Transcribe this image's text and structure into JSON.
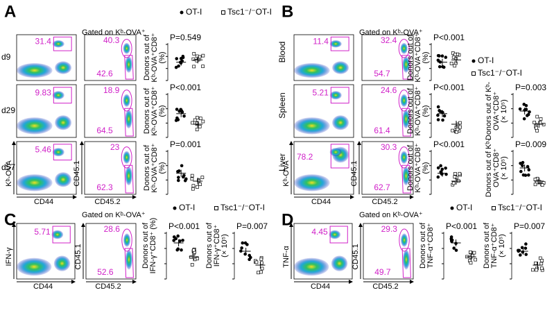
{
  "panels": [
    {
      "label": "A",
      "gate_title": "Gated on Kᵇ-OVA⁺",
      "flow1_x": "CD44",
      "flow1_y": "Kᵇ-OVA",
      "flow2_x": "CD45.2",
      "flow2_y": "CD45.1",
      "legend": [
        "OT-I",
        "Tsc1⁻/⁻OT-I"
      ],
      "dot1_ylabel": [
        "Donors out of",
        "Kᵇ-OVA⁺CD8⁺",
        "(%)"
      ],
      "rows": [
        {
          "name": "d9",
          "flow1_gate": "31.4",
          "flow2_top": "40.3",
          "flow2_bottom": "42.6",
          "p1": "P=0.549"
        },
        {
          "name": "d29",
          "flow1_gate": "9.83",
          "flow2_top": "18.9",
          "flow2_bottom": "64.5",
          "p1": "P<0.001"
        },
        {
          "name": "d57",
          "flow1_gate": "5.46",
          "flow2_top": "23",
          "flow2_bottom": "62.3",
          "p1": "P=0.001"
        }
      ]
    },
    {
      "label": "B",
      "gate_title": "Gated on Kᵇ-OVA⁺",
      "flow1_x": "CD44",
      "flow1_y": "Kᵇ-OVA",
      "flow2_x": "CD45.2",
      "flow2_y": "CD45.1",
      "legend": [
        "OT-I",
        "Tsc1⁻/⁻OT-I"
      ],
      "dot1_ylabel": [
        "Donors out of",
        "Kᵇ-OVA⁺CD8⁺",
        "(%)"
      ],
      "dot2_ylabel": [
        "Donors out of Kᵇ-",
        "OVA⁺CD8⁺",
        "(× 10⁵)"
      ],
      "rows": [
        {
          "name": "Blood",
          "flow1_gate": "11.4",
          "flow2_top": "32.4",
          "flow2_bottom": "54.7",
          "p1": "P<0.001"
        },
        {
          "name": "Spleen",
          "flow1_gate": "5.21",
          "flow2_top": "24.6",
          "flow2_bottom": "61.4",
          "p1": "P<0.001",
          "p2": "P=0.003"
        },
        {
          "name": "Liver",
          "flow1_gate": "78.2",
          "flow2_top": "30.3",
          "flow2_bottom": "62.7",
          "p1": "P<0.001",
          "p2": "P=0.009"
        }
      ]
    },
    {
      "label": "C",
      "gate_title": "Gated on Kᵇ-OVA⁺",
      "flow1_x": "CD44",
      "flow1_y": "IFN-γ",
      "flow2_x": "CD45.2",
      "flow2_y": "CD45.1",
      "legend": [
        "OT-I",
        "Tsc1⁻/⁻OT-I"
      ],
      "dot1_ylabel": [
        "Donors out of",
        "IFN-γ⁺CD8⁺ (%)"
      ],
      "dot2_ylabel": [
        "Donors out of",
        "IFN-γ⁺CD8⁺",
        "(× 10⁵)"
      ],
      "rows": [
        {
          "flow1_gate": "5.71",
          "flow2_top": "28.6",
          "flow2_bottom": "52.6",
          "p1": "P<0.001",
          "p2": "P=0.007"
        }
      ]
    },
    {
      "label": "D",
      "gate_title": "Gated on Kᵇ-OVA⁺",
      "flow1_x": "CD44",
      "flow1_y": "TNF-α",
      "flow2_x": "CD45.2",
      "flow2_y": "CD45.1",
      "legend": [
        "OT-I",
        "Tsc1⁻/⁻OT-I"
      ],
      "dot1_ylabel": [
        "Donors out of",
        "TNF-α⁺CD8⁺"
      ],
      "dot2_ylabel": [
        "Donors out of",
        "TNF-α⁺CD8⁺",
        "(× 10⁵)"
      ],
      "rows": [
        {
          "flow1_gate": "4.45",
          "flow2_top": "29.3",
          "flow2_bottom": "49.7",
          "p1": "P<0.001",
          "p2": "P=0.007"
        }
      ]
    }
  ]
}
